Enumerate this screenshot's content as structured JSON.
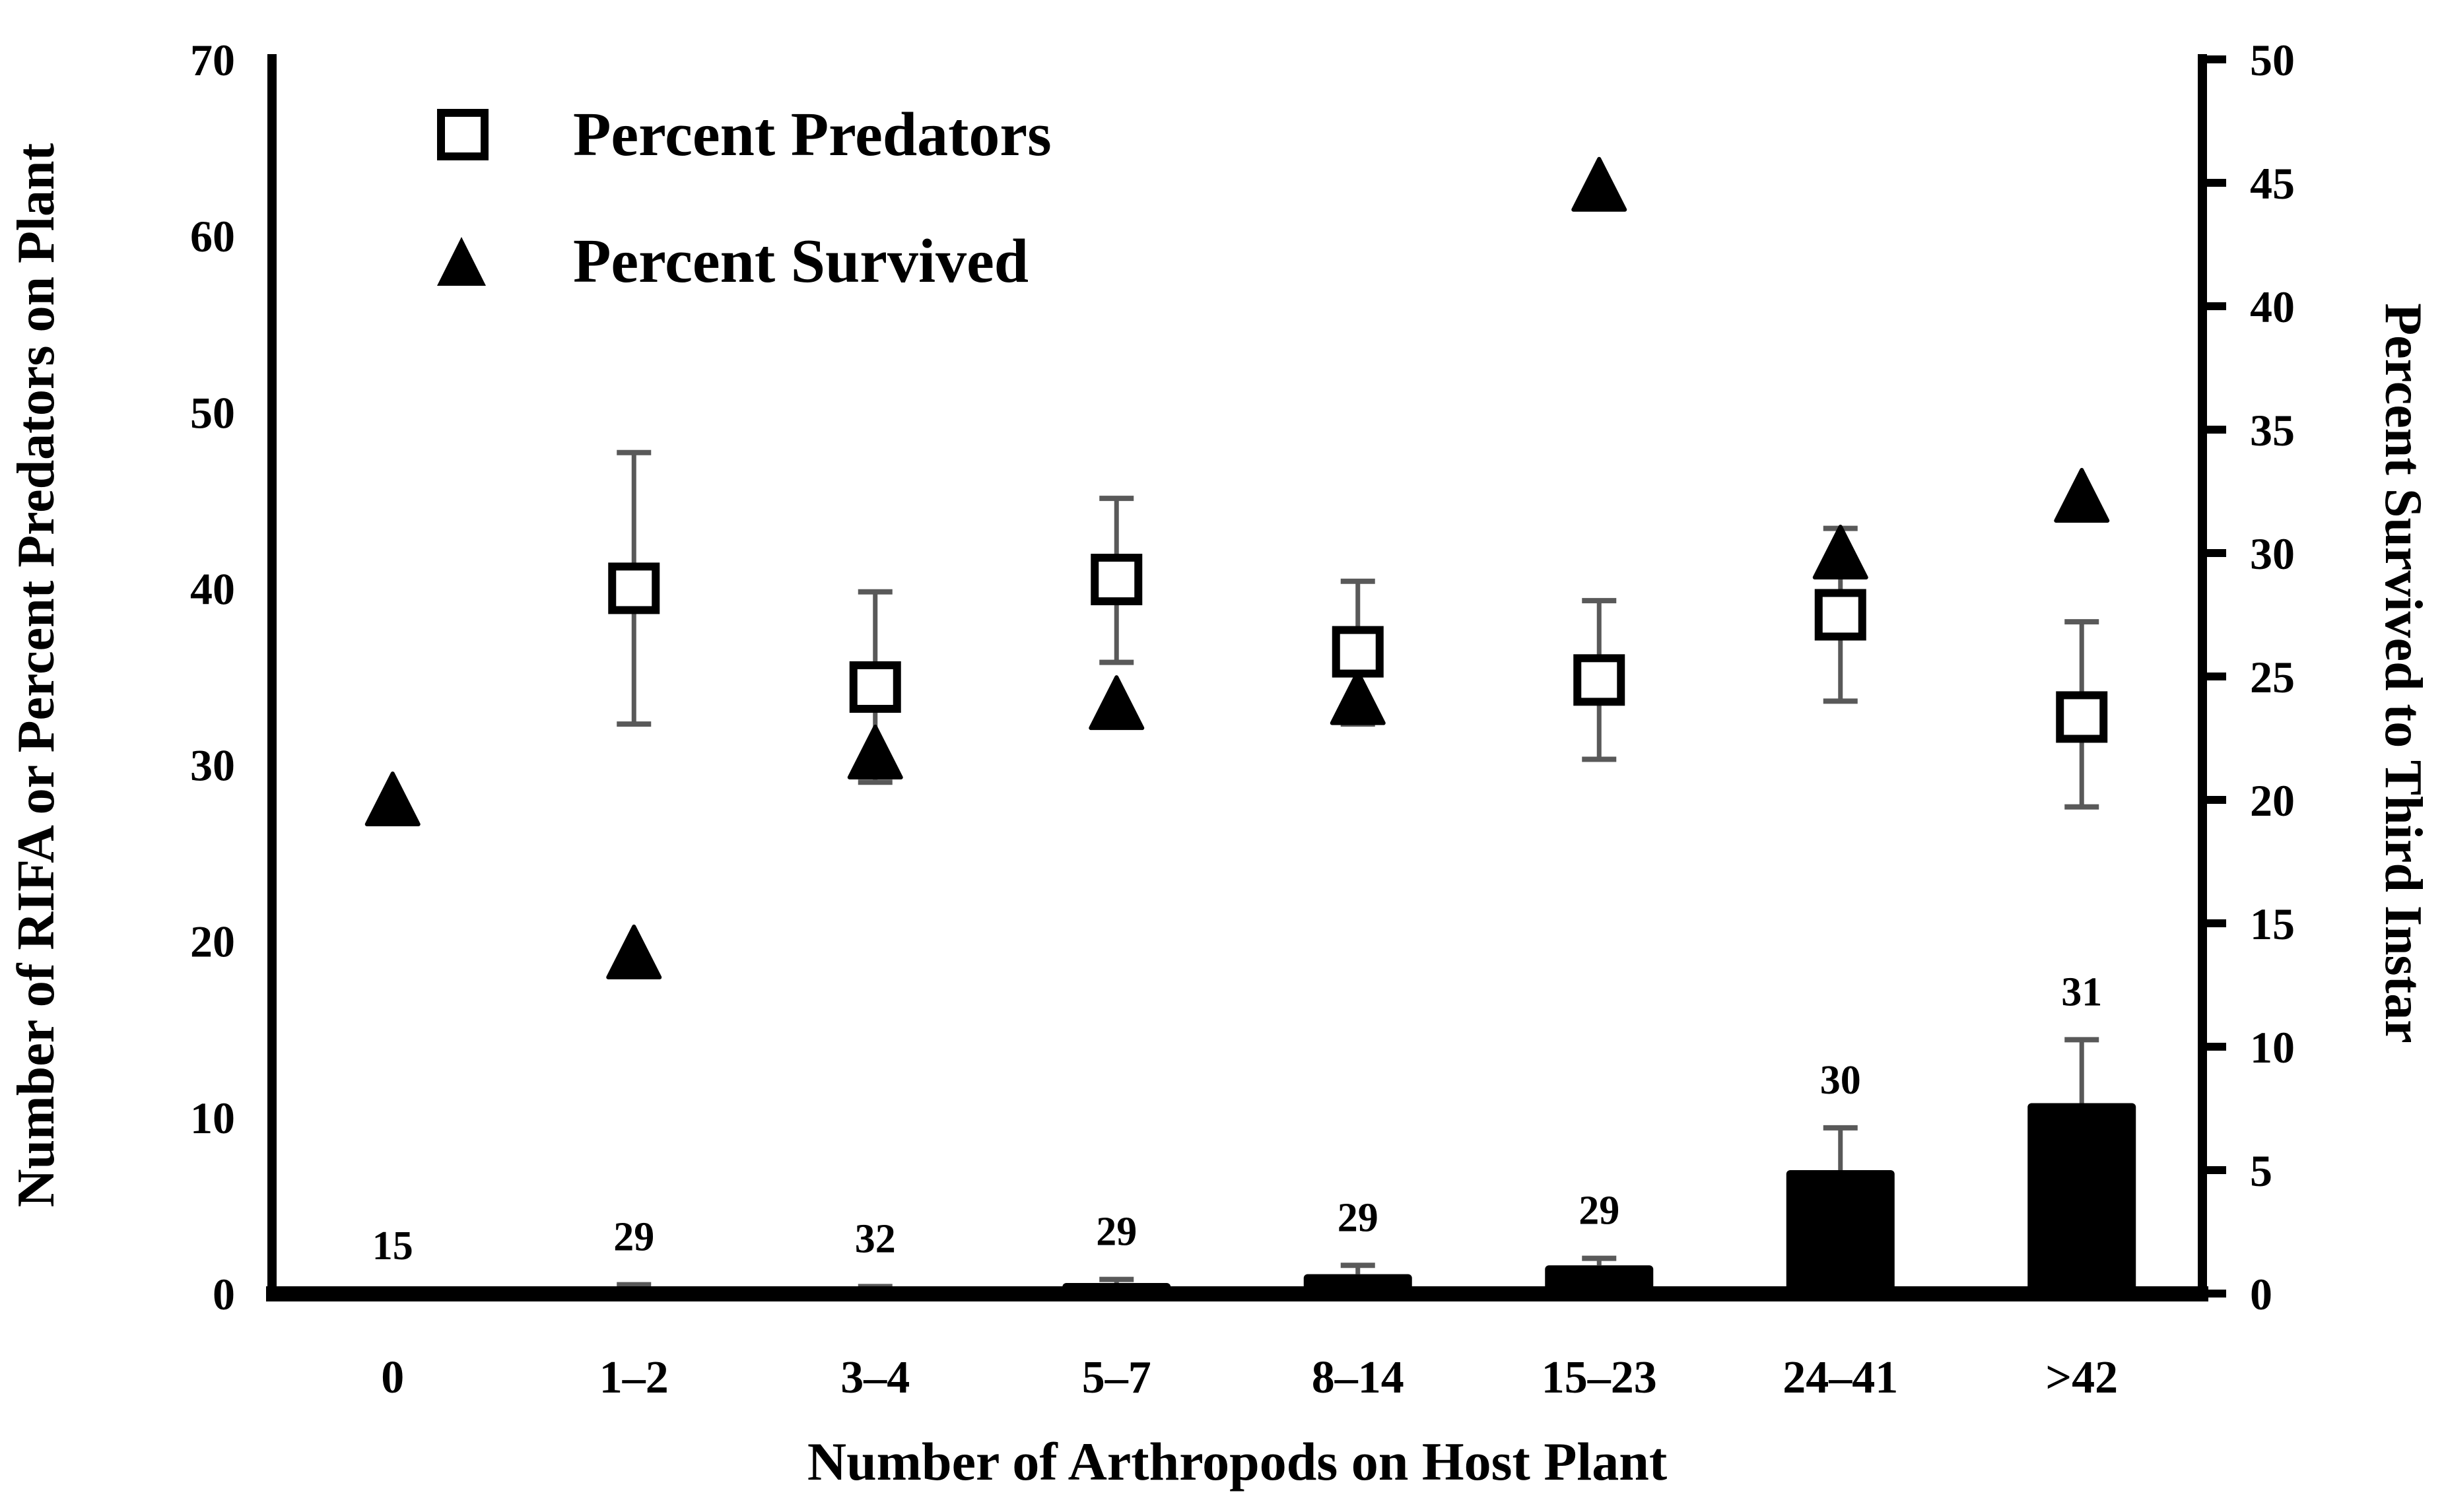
{
  "figure": {
    "legend": [
      {
        "symbol": "open-square",
        "label": "Percent Predators"
      },
      {
        "symbol": "filled-triangle",
        "label": "Percent Survived"
      }
    ],
    "left_axis": {
      "title": "Number of RIFA or Percent Predators on Plant",
      "min": 0,
      "max": 70,
      "step": 10,
      "ticks": [
        0,
        10,
        20,
        30,
        40,
        50,
        60,
        70
      ]
    },
    "right_axis": {
      "title": "Percent Survived to Third Instar",
      "min": 0,
      "max": 50,
      "step": 5,
      "ticks": [
        0,
        5,
        10,
        15,
        20,
        25,
        30,
        35,
        40,
        45,
        50
      ]
    },
    "x_axis": {
      "title": "Number of Arthropods on Host Plant"
    }
  },
  "chart_data": {
    "type": "bar+scatter",
    "categories": [
      "0",
      "1–2",
      "3–4",
      "5–7",
      "8–14",
      "15–23",
      "24–41",
      ">42"
    ],
    "grid": false,
    "legend_position": "top-left-inside",
    "colors": {
      "marks": "#000000",
      "error_bars": "#595959",
      "background": "#ffffff"
    },
    "series": [
      {
        "name": "Number of RIFA",
        "type": "bar",
        "axis": "left",
        "color": "#000000",
        "values": [
          0,
          0.4,
          0.3,
          0.6,
          1.1,
          1.6,
          7.0,
          10.8
        ],
        "error_high": [
          null,
          0.5,
          0.4,
          0.8,
          1.6,
          2.0,
          9.4,
          14.4
        ],
        "point_labels": [
          "15",
          "29",
          "32",
          "29",
          "29",
          "29",
          "30",
          "31"
        ]
      },
      {
        "name": "Percent Predators",
        "type": "scatter",
        "marker": "open-square",
        "axis": "left",
        "values": [
          null,
          40.0,
          34.4,
          40.5,
          36.4,
          34.8,
          38.5,
          32.7
        ],
        "error_low": [
          null,
          32.3,
          29.0,
          35.8,
          32.3,
          30.3,
          33.6,
          27.6
        ],
        "error_high": [
          null,
          47.7,
          39.8,
          45.1,
          40.4,
          39.3,
          43.4,
          38.1
        ]
      },
      {
        "name": "Percent Survived",
        "type": "scatter",
        "marker": "filled-triangle",
        "axis": "right",
        "values": [
          20.0,
          13.8,
          21.9,
          23.9,
          24.1,
          44.9,
          30.0,
          32.3
        ]
      }
    ],
    "left_ylim": [
      0,
      70
    ],
    "right_ylim": [
      0,
      50
    ]
  }
}
